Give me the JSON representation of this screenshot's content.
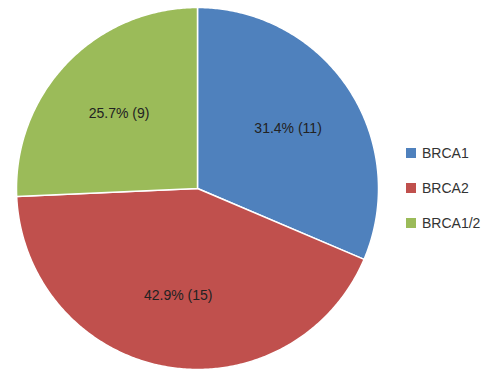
{
  "chart_data": {
    "type": "pie",
    "categories": [
      "BRCA1",
      "BRCA2",
      "BRCA1/2"
    ],
    "values": [
      31.4,
      42.9,
      25.7
    ],
    "value_labels": [
      "31.4% (11)",
      "42.9% (15)",
      "25.7% (9)"
    ],
    "colors": [
      "#4f81bd",
      "#c0504d",
      "#9bbb59"
    ],
    "data_labels": true,
    "legend": "right"
  }
}
